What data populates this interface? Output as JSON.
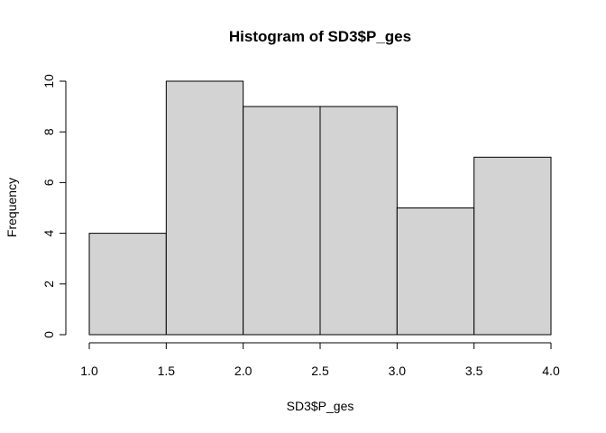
{
  "chart_data": {
    "type": "bar",
    "title": "Histogram of SD3$P_ges",
    "xlabel": "SD3$P_ges",
    "ylabel": "Frequency",
    "bins": [
      {
        "from": 1.0,
        "to": 1.5,
        "count": 4
      },
      {
        "from": 1.5,
        "to": 2.0,
        "count": 10
      },
      {
        "from": 2.0,
        "to": 2.5,
        "count": 9
      },
      {
        "from": 2.5,
        "to": 3.0,
        "count": 9
      },
      {
        "from": 3.0,
        "to": 3.5,
        "count": 5
      },
      {
        "from": 3.5,
        "to": 4.0,
        "count": 7
      }
    ],
    "xlim": [
      1.0,
      4.0
    ],
    "ylim": [
      0,
      10
    ],
    "x_ticks": [
      "1.0",
      "1.5",
      "2.0",
      "2.5",
      "3.0",
      "3.5",
      "4.0"
    ],
    "y_ticks": [
      "0",
      "2",
      "4",
      "6",
      "8",
      "10"
    ],
    "grid": false,
    "colors": {
      "bar_fill": "#d3d3d3",
      "bar_stroke": "#000000"
    }
  }
}
